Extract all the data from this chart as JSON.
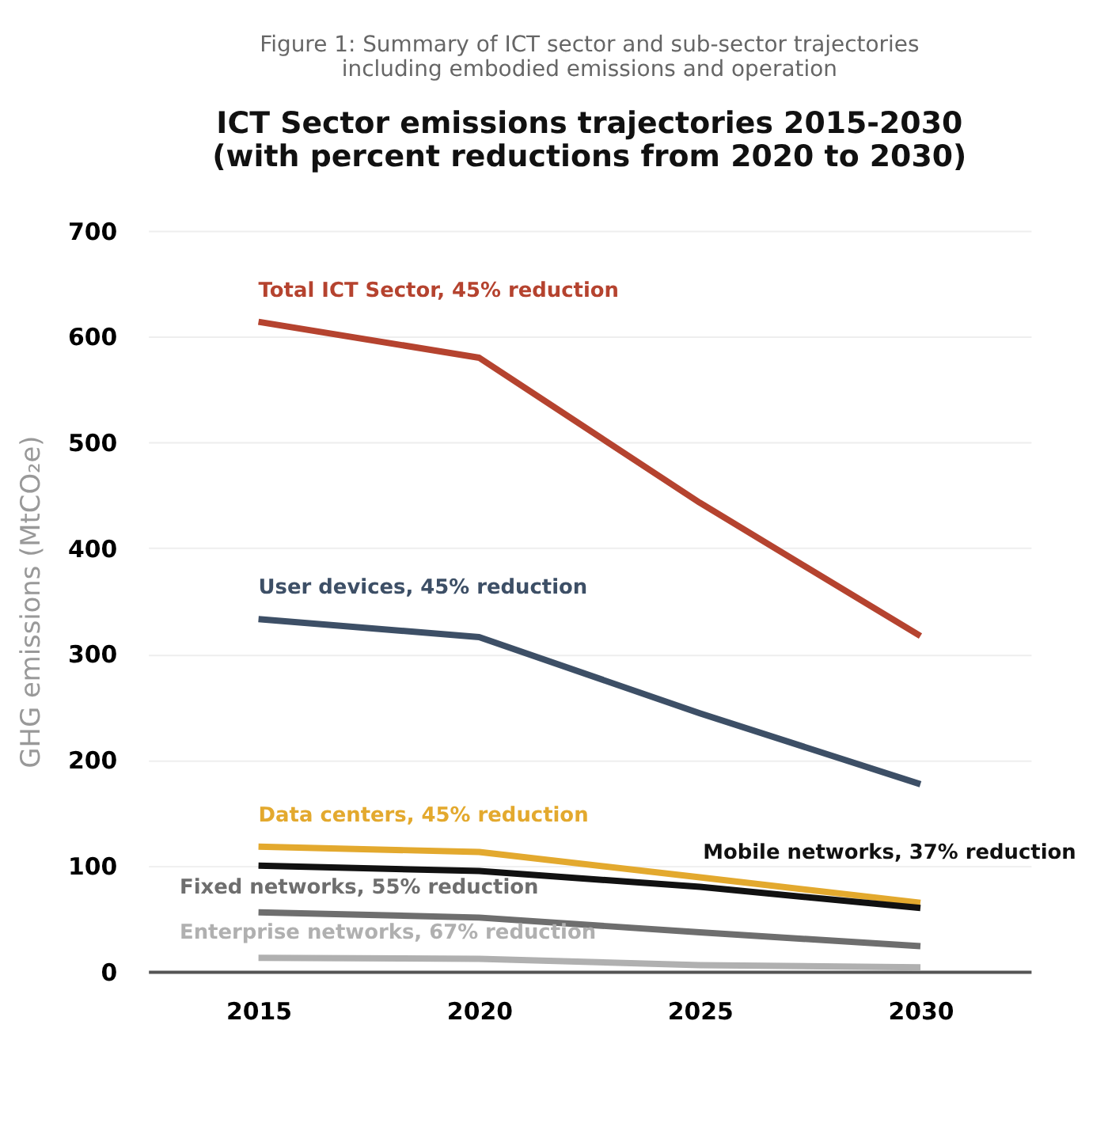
{
  "chart_data": {
    "type": "line",
    "title": "ICT Sector emissions trajectories 2015-2030\n(with percent reductions from 2020 to 2030)",
    "annotations": [
      "Figure 1: Summary of ICT sector and sub-sector trajectories\nincluding embodied emissions and operation"
    ],
    "ylabel": "GHG emissions (MtCO₂e)",
    "categories": [
      "2015",
      "2020",
      "2025",
      "2030"
    ],
    "ylim": [
      0,
      700
    ],
    "yticks": [
      0,
      100,
      200,
      300,
      400,
      500,
      600,
      700
    ],
    "grid": "y",
    "legend": false,
    "marker": "none",
    "series": [
      {
        "name": "Total ICT Sector, 45% reduction",
        "color": "#b5432f",
        "values": [
          614,
          580,
          443,
          317
        ]
      },
      {
        "name": "User devices, 45% reduction",
        "color": "#3d4f66",
        "values": [
          333,
          316,
          244,
          177
        ]
      },
      {
        "name": "Data centers, 45% reduction",
        "color": "#e3a92e",
        "values": [
          118,
          113,
          89,
          65
        ]
      },
      {
        "name": "Mobile networks, 37% reduction",
        "color": "#111111",
        "values": [
          100,
          95,
          80,
          60
        ]
      },
      {
        "name": "Fixed networks, 55% reduction",
        "color": "#6e6e6e",
        "values": [
          56,
          51,
          37,
          24
        ]
      },
      {
        "name": "Enterprise networks, 67% reduction",
        "color": "#b0b0b0",
        "values": [
          13,
          12,
          6,
          4
        ]
      }
    ]
  }
}
